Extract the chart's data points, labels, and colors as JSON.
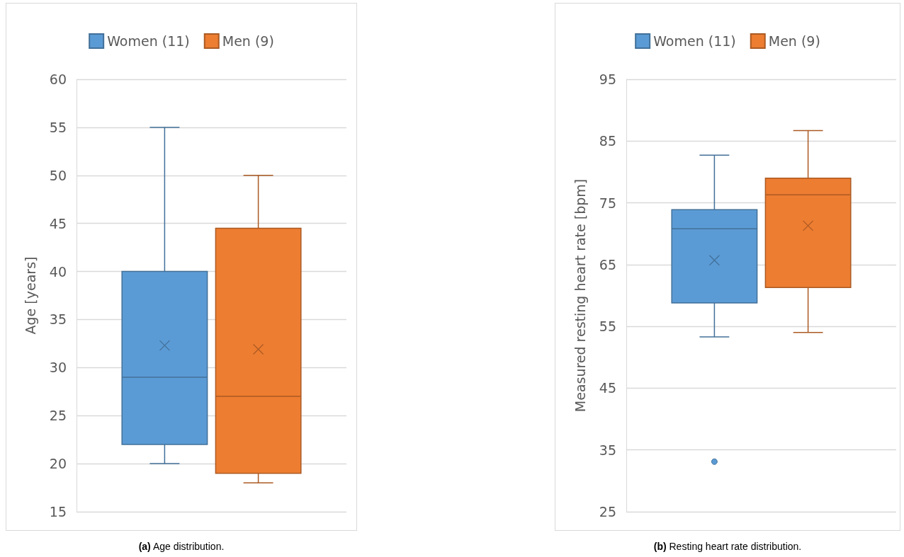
{
  "chart_data": [
    {
      "type": "box",
      "ylabel": "Age [years]",
      "categories": [
        null
      ],
      "ylim": [
        15,
        60
      ],
      "yticks": [
        15,
        20,
        25,
        30,
        35,
        40,
        45,
        50,
        55,
        60
      ],
      "grid": "y",
      "legend": "top",
      "annotations": [
        "(a) Age distribution."
      ],
      "series": [
        {
          "name": "Women (11)",
          "color": "#5b9bd5",
          "boxes": [
            {
              "low": 20,
              "q1": 22,
              "median": 29,
              "q3": 40,
              "high": 55,
              "mean": 32.3
            }
          ]
        },
        {
          "name": "Men (9)",
          "color": "#ed7d31",
          "boxes": [
            {
              "low": 18,
              "q1": 19,
              "median": 27,
              "q3": 44.5,
              "high": 50,
              "mean": 31.9
            }
          ]
        }
      ]
    },
    {
      "type": "box",
      "ylabel": "Measured resting heart rate [bpm]",
      "categories": [
        null
      ],
      "ylim": [
        25,
        95
      ],
      "yticks": [
        25,
        35,
        45,
        55,
        65,
        75,
        85,
        95
      ],
      "grid": "y",
      "legend": "top",
      "annotations": [
        "(b) Resting heart rate distribution."
      ],
      "series": [
        {
          "name": "Women (11)",
          "color": "#5b9bd5",
          "boxes": [
            {
              "low": 53.3,
              "q1": 58.8,
              "median": 70.8,
              "q3": 73.9,
              "high": 82.7,
              "mean": 65.7,
              "outliers": [
                33.1
              ]
            }
          ]
        },
        {
          "name": "Men (9)",
          "color": "#ed7d31",
          "boxes": [
            {
              "low": 54,
              "q1": 61.3,
              "median": 76.3,
              "q3": 79,
              "high": 86.7,
              "mean": 71.3
            }
          ]
        }
      ]
    }
  ]
}
